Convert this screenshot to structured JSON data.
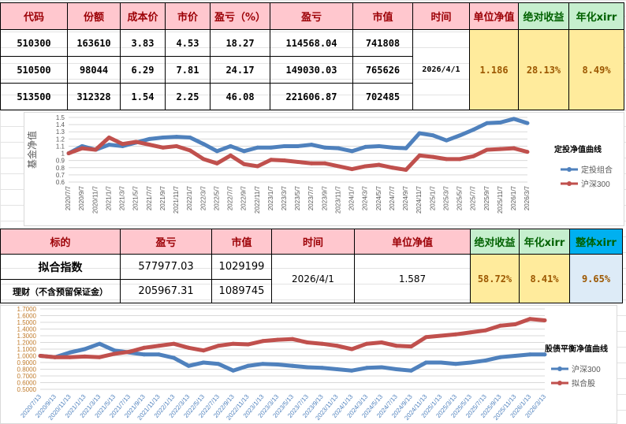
{
  "table1": {
    "headers": [
      "代码",
      "份额",
      "成本价",
      "市价",
      "盈亏（%）",
      "盈亏",
      "市值",
      "时间",
      "单位净值",
      "绝对收益",
      "年化xirr"
    ],
    "rows": [
      [
        "510300",
        "163610",
        "3.83",
        "4.53",
        "18.27",
        "114568.04",
        "741808"
      ],
      [
        "510500",
        "98044",
        "6.29",
        "7.81",
        "24.17",
        "149030.03",
        "765626"
      ],
      [
        "513500",
        "312328",
        "1.54",
        "2.25",
        "46.08",
        "221606.87",
        "702485"
      ]
    ],
    "time": "2026/4/1",
    "nav": "1.186",
    "abs_return": "28.13%",
    "xirr": "8.49%"
  },
  "table2": {
    "headers": [
      "标的",
      "盈亏",
      "市值",
      "时间",
      "单位净值",
      "绝对收益",
      "年化xirr",
      "整体xirr"
    ],
    "rows": [
      [
        "拟合指数",
        "577977.03",
        "1029199"
      ],
      [
        "理财（不含预留保证金）",
        "205967.31",
        "1089745"
      ]
    ],
    "time": "2026/4/1",
    "nav": "1.587",
    "abs_return": "58.72%",
    "xirr": "8.41%",
    "overall_xirr": "9.65%"
  },
  "colors": {
    "blue": "#4f81bd",
    "red": "#c0504d",
    "header_pink": "#ffc7ce",
    "header_green": "#c6efce",
    "header_blue": "#00b0f0",
    "value_yellow": "#ffeb9c"
  },
  "chart_data": [
    {
      "type": "line",
      "title": "定投净值曲线",
      "ylabel": "基金净值",
      "ylim": [
        0.6,
        1.5
      ],
      "ystep": 0.1,
      "grid": true,
      "legend": "right",
      "categories": [
        "2020/7/7",
        "2020/9/7",
        "2020/11/7",
        "2021/1/7",
        "2021/3/7",
        "2021/5/7",
        "2021/7/7",
        "2021/9/7",
        "2021/11/7",
        "2022/1/7",
        "2022/3/7",
        "2022/5/7",
        "2022/7/7",
        "2022/9/7",
        "2022/11/7",
        "2023/1/7",
        "2023/3/7",
        "2023/5/7",
        "2023/7/7",
        "2023/9/7",
        "2023/11/7",
        "2024/1/7",
        "2024/3/7",
        "2024/5/7",
        "2024/7/7",
        "2024/9/7",
        "2024/11/7",
        "2025/1/7",
        "2025/3/7",
        "2025/5/7",
        "2025/7/7",
        "2025/9/7",
        "2025/11/7",
        "2026/1/7",
        "2026/3/7"
      ],
      "series": [
        {
          "name": "定投组合",
          "color": "#4f81bd",
          "values": [
            1.0,
            1.1,
            1.05,
            1.12,
            1.1,
            1.15,
            1.2,
            1.22,
            1.23,
            1.22,
            1.13,
            1.03,
            1.1,
            1.03,
            1.08,
            1.08,
            1.1,
            1.1,
            1.12,
            1.08,
            1.07,
            1.03,
            1.09,
            1.1,
            1.08,
            1.07,
            1.28,
            1.25,
            1.18,
            1.25,
            1.33,
            1.42,
            1.43,
            1.48,
            1.42
          ]
        },
        {
          "name": "沪深300",
          "color": "#c0504d",
          "values": [
            1.0,
            1.07,
            1.05,
            1.22,
            1.13,
            1.16,
            1.12,
            1.08,
            1.1,
            1.04,
            0.92,
            0.86,
            0.97,
            0.85,
            0.82,
            0.91,
            0.9,
            0.88,
            0.86,
            0.86,
            0.82,
            0.78,
            0.82,
            0.84,
            0.8,
            0.77,
            0.97,
            0.95,
            0.92,
            0.92,
            0.96,
            1.05,
            1.06,
            1.07,
            1.02
          ]
        }
      ]
    },
    {
      "type": "line",
      "title": "股债平衡净值曲线",
      "ylim": [
        0.5,
        1.7
      ],
      "ystep": 0.1,
      "grid": true,
      "legend": "right",
      "categories": [
        "2020/7/13",
        "2020/9/13",
        "2020/11/13",
        "2021/1/13",
        "2021/3/13",
        "2021/5/13",
        "2021/7/13",
        "2021/9/13",
        "2021/11/13",
        "2022/1/13",
        "2022/3/13",
        "2022/5/13",
        "2022/7/13",
        "2022/9/13",
        "2022/11/13",
        "2023/1/13",
        "2023/3/13",
        "2023/5/13",
        "2023/7/13",
        "2023/9/13",
        "2023/11/13",
        "2024/1/13",
        "2024/3/13",
        "2024/5/13",
        "2024/7/13",
        "2024/9/13",
        "2024/11/13",
        "2025/1/13",
        "2025/3/13",
        "2025/5/13",
        "2025/7/13",
        "2025/9/13",
        "2025/11/13",
        "2026/1/13",
        "2026/3/13"
      ],
      "series": [
        {
          "name": "沪深300",
          "color": "#4f81bd",
          "values": [
            1.0,
            0.98,
            1.05,
            1.1,
            1.18,
            1.08,
            1.05,
            1.02,
            1.02,
            0.97,
            0.85,
            0.9,
            0.88,
            0.78,
            0.85,
            0.88,
            0.87,
            0.85,
            0.83,
            0.82,
            0.8,
            0.78,
            0.82,
            0.83,
            0.8,
            0.78,
            0.9,
            0.9,
            0.88,
            0.9,
            0.93,
            0.98,
            1.0,
            1.02,
            1.02
          ]
        },
        {
          "name": "拟合股",
          "color": "#c0504d",
          "values": [
            1.0,
            0.98,
            0.98,
            0.99,
            0.98,
            1.03,
            1.06,
            1.12,
            1.15,
            1.18,
            1.12,
            1.08,
            1.15,
            1.18,
            1.17,
            1.22,
            1.24,
            1.25,
            1.2,
            1.18,
            1.15,
            1.1,
            1.18,
            1.2,
            1.15,
            1.14,
            1.28,
            1.3,
            1.32,
            1.35,
            1.38,
            1.45,
            1.47,
            1.55,
            1.53
          ]
        }
      ]
    }
  ]
}
